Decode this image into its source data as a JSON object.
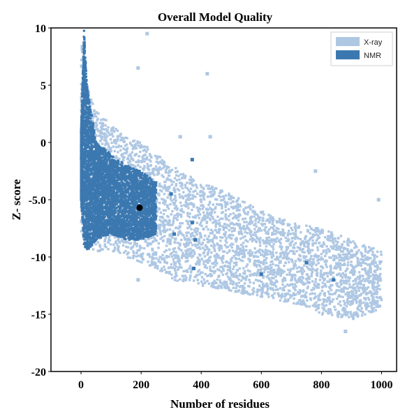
{
  "chart_data": {
    "type": "scatter",
    "title": "Overall Model Quality",
    "xlabel": "Number of residues",
    "ylabel": "Z- score",
    "xlim": [
      -100,
      1050
    ],
    "ylim": [
      -20,
      10
    ],
    "x_ticks": [
      {
        "value": 0,
        "label": "0"
      },
      {
        "value": 200,
        "label": "200"
      },
      {
        "value": 400,
        "label": "400"
      },
      {
        "value": 600,
        "label": "600"
      },
      {
        "value": 800,
        "label": "800"
      },
      {
        "value": 1000,
        "label": "1000"
      }
    ],
    "y_ticks": [
      {
        "value": 10,
        "label": "10"
      },
      {
        "value": 5,
        "label": "5"
      },
      {
        "value": 0,
        "label": "0"
      },
      {
        "value": -5,
        "label": "-5.0"
      },
      {
        "value": -10,
        "label": "-10"
      },
      {
        "value": -15,
        "label": "-15"
      },
      {
        "value": -20,
        "label": "-20"
      }
    ],
    "grid": false,
    "legend": {
      "position": "top-right"
    },
    "series": [
      {
        "name": "X-ray",
        "color": "#aec7e3",
        "note": "dense band of points; upper and lower envelope in data units",
        "x": [
          0,
          20,
          50,
          100,
          150,
          200,
          250,
          300,
          400,
          500,
          600,
          700,
          800,
          900,
          1000
        ],
        "y_upper": [
          10,
          5,
          3,
          1.5,
          0.5,
          0,
          -1,
          -2,
          -3.5,
          -4.5,
          -6,
          -7,
          -7.5,
          -8.5,
          -9.5
        ],
        "y_lower": [
          -8,
          -9,
          -9.5,
          -9.5,
          -10,
          -10.5,
          -11,
          -12,
          -12.5,
          -13,
          -13.5,
          -14,
          -15,
          -15.5,
          -14.5
        ],
        "outliers": [
          {
            "x": 220,
            "y": 9.5
          },
          {
            "x": 420,
            "y": 6
          },
          {
            "x": 190,
            "y": 6.5
          },
          {
            "x": 330,
            "y": 0.5
          },
          {
            "x": 430,
            "y": 0.5
          },
          {
            "x": 780,
            "y": -2.5
          },
          {
            "x": 990,
            "y": -5
          },
          {
            "x": 900,
            "y": -13.5
          },
          {
            "x": 190,
            "y": -12
          },
          {
            "x": 880,
            "y": -16.5
          }
        ]
      },
      {
        "name": "NMR",
        "color": "#3c78b0",
        "note": "dense band of points; upper and lower envelope in data units",
        "x": [
          0,
          10,
          20,
          50,
          100,
          150,
          200,
          250
        ],
        "y_upper": [
          1,
          10,
          5,
          0,
          -1,
          -2,
          -2.5,
          -3.5
        ],
        "y_lower": [
          -5,
          -9,
          -9.5,
          -8.5,
          -8,
          -8.5,
          -8.5,
          -8
        ],
        "outliers": [
          {
            "x": 300,
            "y": -4.5
          },
          {
            "x": 310,
            "y": -8
          },
          {
            "x": 370,
            "y": -1.5
          },
          {
            "x": 375,
            "y": -11
          },
          {
            "x": 370,
            "y": -7
          },
          {
            "x": 380,
            "y": -8.5
          },
          {
            "x": 600,
            "y": -11.5
          },
          {
            "x": 750,
            "y": -10.5
          },
          {
            "x": 840,
            "y": -12
          },
          {
            "x": 130,
            "y": -7.5
          }
        ]
      }
    ],
    "highlight": {
      "x": 195,
      "y": -5.7,
      "color": "#000000"
    }
  }
}
